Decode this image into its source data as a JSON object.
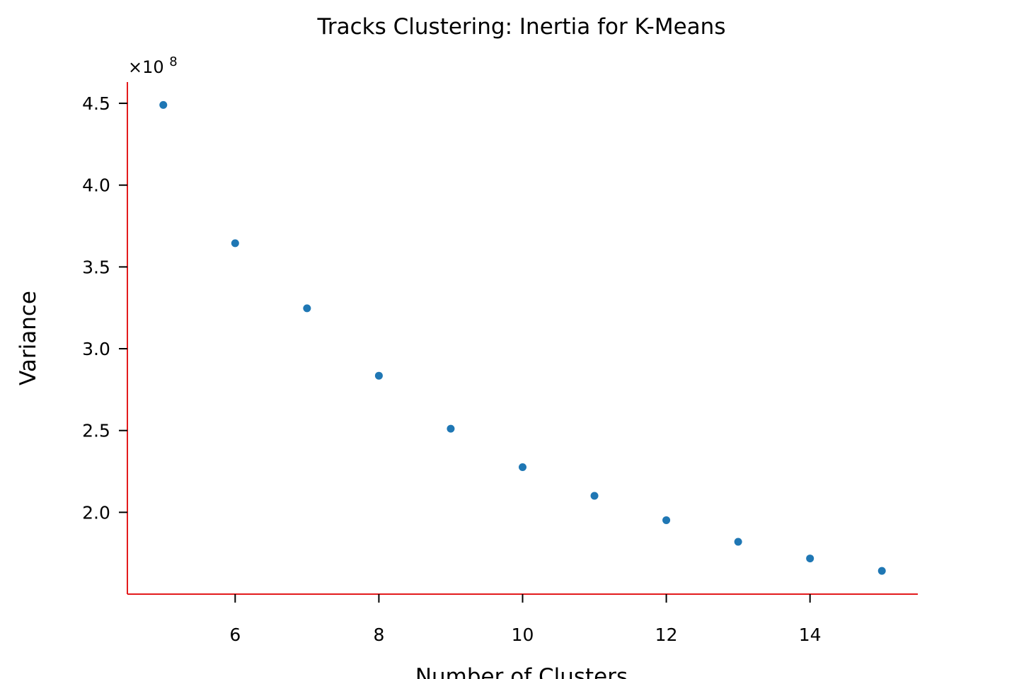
{
  "chart_data": {
    "type": "scatter",
    "title": "Tracks Clustering: Inertia for K-Means",
    "xlabel": "Number of Clusters",
    "ylabel": "Variance",
    "y_offset_label": "×10",
    "y_offset_exponent": "8",
    "x": [
      5,
      6,
      7,
      8,
      9,
      10,
      11,
      12,
      13,
      14,
      15
    ],
    "y": [
      4.49,
      3.645,
      3.247,
      2.835,
      2.511,
      2.276,
      2.101,
      1.952,
      1.82,
      1.718,
      1.642
    ],
    "y_scale": 100000000,
    "xlim": [
      4.5,
      15.5
    ],
    "ylim": [
      1.5,
      4.63
    ],
    "xticks": [
      6,
      8,
      10,
      12,
      14
    ],
    "xtick_labels": [
      "6",
      "8",
      "10",
      "12",
      "14"
    ],
    "yticks": [
      2.0,
      2.5,
      3.0,
      3.5,
      4.0,
      4.5
    ],
    "ytick_labels": [
      "2.0",
      "2.5",
      "3.0",
      "3.5",
      "4.0",
      "4.5"
    ],
    "grid": false,
    "colors": {
      "points": "#1f77b4",
      "axes_spines": "#e31a1c",
      "ticks": "#000000"
    }
  }
}
